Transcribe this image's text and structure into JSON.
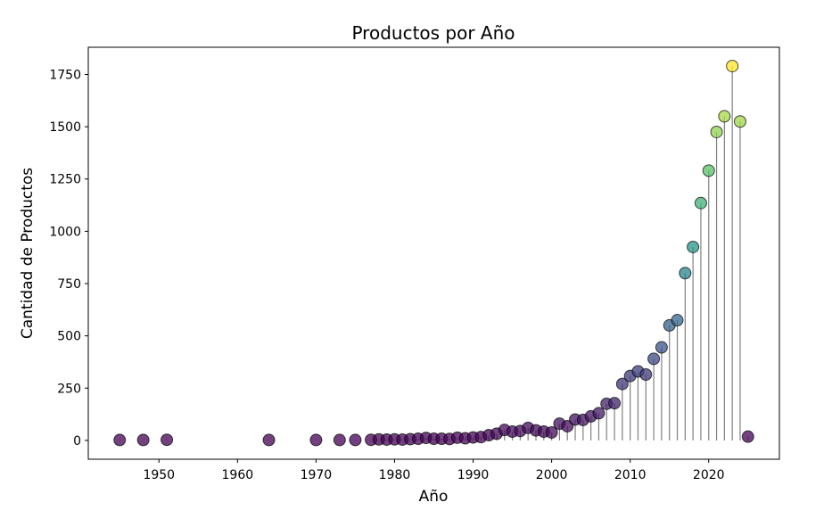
{
  "chart_data": {
    "type": "scatter",
    "style": "lollipop",
    "title": "Productos por Año",
    "xlabel": "Año",
    "ylabel": "Cantidad de Productos",
    "xlim": [
      1941,
      2029
    ],
    "ylim": [
      -90,
      1880
    ],
    "xticks": [
      1950,
      1960,
      1970,
      1980,
      1990,
      2000,
      2010,
      2020
    ],
    "yticks": [
      0,
      250,
      500,
      750,
      1000,
      1250,
      1500,
      1750
    ],
    "colormap": "viridis",
    "stem_color": "#808080",
    "x": [
      1945,
      1948,
      1951,
      1964,
      1970,
      1973,
      1975,
      1977,
      1978,
      1979,
      1980,
      1981,
      1982,
      1983,
      1984,
      1985,
      1986,
      1987,
      1988,
      1989,
      1990,
      1991,
      1992,
      1993,
      1994,
      1995,
      1996,
      1997,
      1998,
      1999,
      2000,
      2001,
      2002,
      2003,
      2004,
      2005,
      2006,
      2007,
      2008,
      2009,
      2010,
      2011,
      2012,
      2013,
      2014,
      2015,
      2016,
      2017,
      2018,
      2019,
      2020,
      2021,
      2022,
      2023,
      2024,
      2025
    ],
    "y": [
      2,
      2,
      3,
      2,
      2,
      2,
      2,
      3,
      5,
      4,
      5,
      4,
      6,
      8,
      12,
      8,
      8,
      7,
      13,
      10,
      14,
      16,
      25,
      32,
      50,
      42,
      45,
      60,
      48,
      42,
      38,
      80,
      68,
      100,
      98,
      115,
      130,
      175,
      178,
      270,
      308,
      330,
      315,
      390,
      445,
      550,
      575,
      800,
      925,
      1135,
      1290,
      1475,
      1550,
      1790,
      1525,
      18
    ]
  }
}
